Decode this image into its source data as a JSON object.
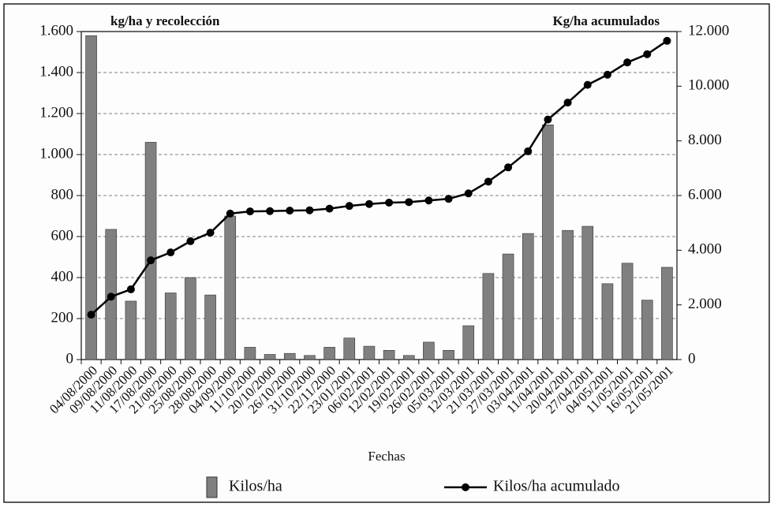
{
  "chart_data": {
    "type": "bar_line",
    "y_label": "kg/ha y recolección",
    "y2_label": "Kg/ha acumulados",
    "x_label": "Fechas",
    "categories": [
      "04/08/2000",
      "09/08/2000",
      "11/08/2000",
      "17/08/2000",
      "21/08/2000",
      "25/08/2000",
      "28/08/2000",
      "04/09/2000",
      "11/10/2000",
      "20/10/2000",
      "26/10/2000",
      "31/10/2000",
      "22/11/2000",
      "23/01/2001",
      "06/02/2001",
      "12/02/2001",
      "19/02/2001",
      "26/02/2001",
      "05/03/2001",
      "12/03/2001",
      "21/03/2001",
      "27/03/2001",
      "03/04/2001",
      "11/04/2001",
      "20/04/2001",
      "27/04/2001",
      "04/05/2001",
      "11/05/2001",
      "16/05/2001",
      "21/05/2001"
    ],
    "series": [
      {
        "name": "Kilos/ha",
        "color": "#808080",
        "values": [
          1580,
          635,
          285,
          1060,
          325,
          400,
          315,
          700,
          60,
          25,
          30,
          20,
          60,
          105,
          65,
          45,
          20,
          85,
          45,
          165,
          420,
          515,
          615,
          1145,
          630,
          650,
          370,
          470,
          290,
          450
        ]
      },
      {
        "name": "Kilos/ha acumulado",
        "color": "#000000",
        "axis": "y2",
        "values": [
          1640,
          2300,
          2570,
          3630,
          3920,
          4330,
          4640,
          5340,
          5420,
          5430,
          5450,
          5460,
          5520,
          5620,
          5690,
          5740,
          5760,
          5820,
          5880,
          6080,
          6510,
          7030,
          7620,
          8780,
          9400,
          10050,
          10420,
          10870,
          11170,
          11660
        ]
      }
    ],
    "ylim": [
      0,
      1600
    ],
    "yticks": [
      0,
      {
        "value": 200,
        "label": "200"
      },
      {
        "value": 400,
        "label": "400"
      },
      {
        "value": 600,
        "label": "600"
      },
      {
        "value": 800,
        "label": "800"
      },
      {
        "value": 1000,
        "label": "1.000"
      },
      {
        "value": 1200,
        "label": "1.200"
      },
      {
        "value": 1400,
        "label": "1.400"
      },
      {
        "value": 1600,
        "label": "1.600"
      }
    ],
    "y2lim": [
      0,
      12000
    ],
    "y2ticks": [
      0,
      {
        "value": 2000,
        "label": "2.000"
      },
      {
        "value": 4000,
        "label": "4.000"
      },
      {
        "value": 6000,
        "label": "6.000"
      },
      {
        "value": 8000,
        "label": "8.000"
      },
      {
        "value": 10000,
        "label": "10.000"
      },
      {
        "value": 12000,
        "label": "12.000"
      }
    ],
    "grid": true
  }
}
